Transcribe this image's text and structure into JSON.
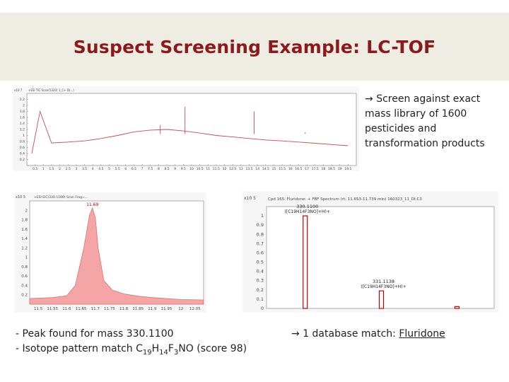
{
  "slide": {
    "title": "Suspect Screening Example: LC-TOF",
    "bullet_right": "Screen against exact mass library of 1600 pesticides and transformation products",
    "bullet_right_arrow": "→",
    "bottom_left_line1": "- Peak found for mass 330.1100",
    "bottom_left_line2_prefix": "- Isotope pattern match C",
    "formula": {
      "C": "19",
      "H": "14",
      "F": "3",
      "tail": "NO (score 98)"
    },
    "bottom_right_prefix": "1 database match: ",
    "bottom_right_match": "Fluridone",
    "bottom_right_arrow": "→"
  },
  "colors": {
    "title": "#8b1a1a",
    "title_bg": "#eeece3",
    "tic_trace": "#c0504d",
    "eic_fill": "#f4a6a6",
    "spectrum_bar": "#c00000"
  },
  "chart_data": [
    {
      "type": "line",
      "header": "+ESI TIC Scan(5320) 1_C+ D(...)",
      "y_multiplier": "x10 7",
      "ylim": [
        0,
        2.4
      ],
      "y_ticks": [
        "2.2",
        "2",
        "1.8",
        "1.6",
        "1.4",
        "1.2",
        "1",
        "0.8",
        "0.6",
        "0.4",
        "0.2"
      ],
      "x_ticks": [
        "0.5",
        "1",
        "1.5",
        "2",
        "2.5",
        "3",
        "3.5",
        "4",
        "4.5",
        "5",
        "5.5",
        "6",
        "6.5",
        "7",
        "7.5",
        "8",
        "8.5",
        "9",
        "9.5",
        "10",
        "10.5",
        "11",
        "11.5",
        "12",
        "12.5",
        "13",
        "13.5",
        "14",
        "14.5",
        "15",
        "15.5",
        "16",
        "16.5",
        "17",
        "17.5",
        "18",
        "18.5",
        "19",
        "19.5"
      ],
      "x": [
        0.3,
        0.8,
        1.5,
        2.5,
        3.5,
        4.5,
        5.5,
        6.5,
        7.5,
        8.5,
        9.5,
        10.5,
        11.5,
        12.5,
        13.5,
        14.5,
        15.5,
        16.5,
        17.5,
        18.5,
        19.5
      ],
      "y": [
        0.4,
        1.8,
        0.75,
        0.78,
        0.82,
        0.9,
        1.0,
        1.12,
        1.18,
        1.2,
        1.15,
        1.08,
        1.0,
        0.95,
        0.9,
        0.85,
        0.82,
        0.78,
        0.74,
        0.7,
        0.66
      ],
      "peaks": [
        [
          9.6,
          1.95
        ],
        [
          13.8,
          1.8
        ],
        [
          8.1,
          1.35
        ],
        [
          16.9,
          1.1
        ]
      ],
      "xlim": [
        0,
        20
      ]
    },
    {
      "type": "area",
      "header": "+ESI EIC(330.1100) Scan Frag=...",
      "y_multiplier": "x10 5",
      "peak_label": "11.69",
      "ylim": [
        0,
        2.2
      ],
      "y_ticks": [
        "2",
        "1.8",
        "1.6",
        "1.4",
        "1.2",
        "1",
        "0.8",
        "0.6",
        "0.4",
        "0.2"
      ],
      "x_ticks": [
        "11.5",
        "11.55",
        "11.6",
        "11.65",
        "11.7",
        "11.75",
        "11.8",
        "11.85",
        "11.9",
        "11.95",
        "12",
        "12.05"
      ],
      "xlim": [
        11.47,
        12.08
      ],
      "x": [
        11.47,
        11.55,
        11.6,
        11.63,
        11.66,
        11.68,
        11.69,
        11.7,
        11.71,
        11.73,
        11.76,
        11.8,
        11.85,
        11.9,
        11.95,
        12.0,
        12.08
      ],
      "y": [
        0.12,
        0.14,
        0.18,
        0.4,
        1.2,
        1.9,
        2.05,
        1.85,
        1.2,
        0.5,
        0.3,
        0.22,
        0.17,
        0.14,
        0.12,
        0.1,
        0.09
      ]
    },
    {
      "type": "bar",
      "header": "Cpd 165: Fluridone: + FBF Spectrum (rt: 11.653-11.739 min) 160323_11_DI-C3",
      "y_multiplier": "x10 5",
      "ylim": [
        0,
        1.1
      ],
      "y_ticks": [
        "1",
        "0.9",
        "0.8",
        "0.7",
        "0.6",
        "0.5",
        "0.4",
        "0.3",
        "0.2",
        "0.1",
        "0"
      ],
      "x": [
        330.11,
        331.1138,
        332.11
      ],
      "y": [
        1.0,
        0.19,
        0.02
      ],
      "xlim": [
        329.6,
        332.6
      ],
      "labels": [
        {
          "mz": "330.1100",
          "formula": "([C19H14F3NO]+H)+"
        },
        {
          "mz": "331.1138",
          "formula": "([C19H14F3NO]+H)+"
        }
      ]
    }
  ]
}
